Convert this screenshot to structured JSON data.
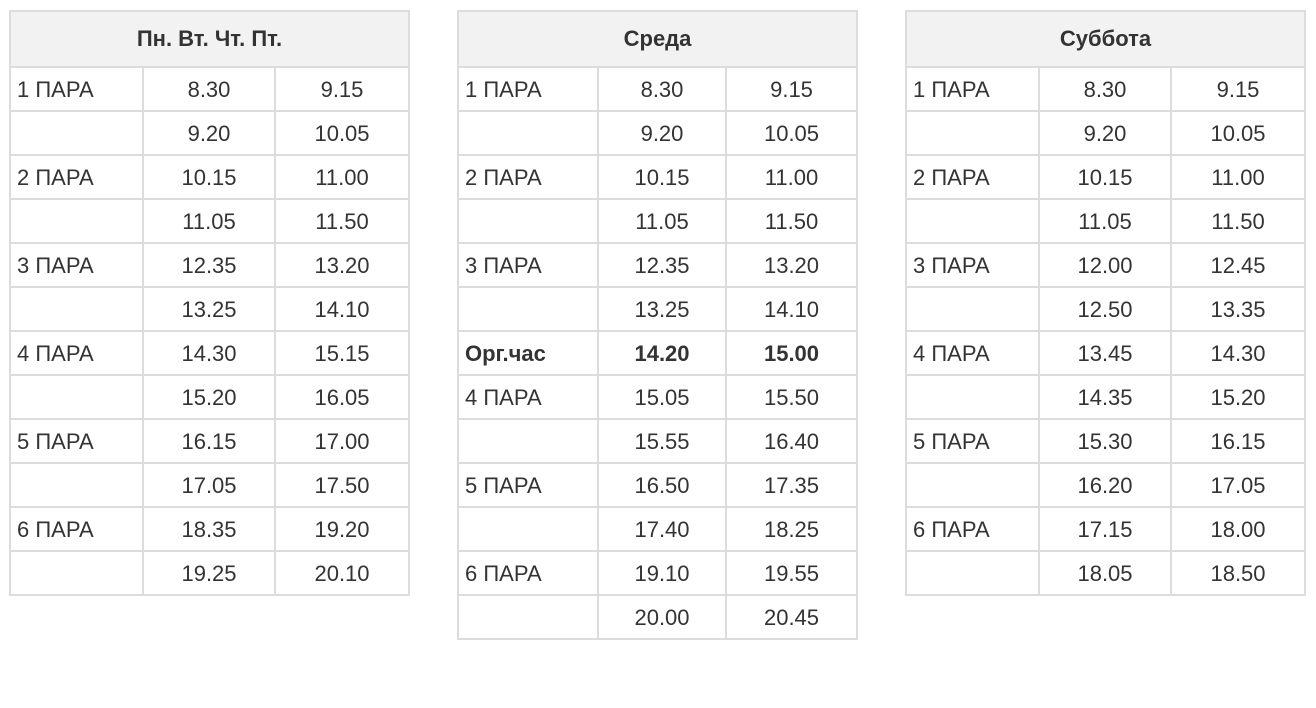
{
  "tables": [
    {
      "header": "Пн. Вт. Чт. Пт.",
      "rows": [
        {
          "label": "1 ПАРА",
          "start": "8.30",
          "end": "9.15",
          "bold": false
        },
        {
          "label": "",
          "start": "9.20",
          "end": "10.05",
          "bold": false
        },
        {
          "label": "2 ПАРА",
          "start": "10.15",
          "end": "11.00",
          "bold": false
        },
        {
          "label": "",
          "start": "11.05",
          "end": "11.50",
          "bold": false
        },
        {
          "label": "3 ПАРА",
          "start": "12.35",
          "end": "13.20",
          "bold": false
        },
        {
          "label": "",
          "start": "13.25",
          "end": "14.10",
          "bold": false
        },
        {
          "label": "4 ПАРА",
          "start": "14.30",
          "end": "15.15",
          "bold": false
        },
        {
          "label": "",
          "start": "15.20",
          "end": "16.05",
          "bold": false
        },
        {
          "label": "5 ПАРА",
          "start": "16.15",
          "end": "17.00",
          "bold": false
        },
        {
          "label": "",
          "start": "17.05",
          "end": "17.50",
          "bold": false
        },
        {
          "label": "6 ПАРА",
          "start": "18.35",
          "end": "19.20",
          "bold": false
        },
        {
          "label": "",
          "start": "19.25",
          "end": "20.10",
          "bold": false
        }
      ]
    },
    {
      "header": "Среда",
      "rows": [
        {
          "label": "1 ПАРА",
          "start": "8.30",
          "end": "9.15",
          "bold": false
        },
        {
          "label": "",
          "start": "9.20",
          "end": "10.05",
          "bold": false
        },
        {
          "label": "2 ПАРА",
          "start": "10.15",
          "end": "11.00",
          "bold": false
        },
        {
          "label": "",
          "start": "11.05",
          "end": "11.50",
          "bold": false
        },
        {
          "label": "3 ПАРА",
          "start": "12.35",
          "end": "13.20",
          "bold": false
        },
        {
          "label": "",
          "start": "13.25",
          "end": "14.10",
          "bold": false
        },
        {
          "label": "Орг.час",
          "start": "14.20",
          "end": "15.00",
          "bold": true
        },
        {
          "label": "4 ПАРА",
          "start": "15.05",
          "end": "15.50",
          "bold": false
        },
        {
          "label": "",
          "start": "15.55",
          "end": "16.40",
          "bold": false
        },
        {
          "label": "5 ПАРА",
          "start": "16.50",
          "end": "17.35",
          "bold": false
        },
        {
          "label": "",
          "start": "17.40",
          "end": "18.25",
          "bold": false
        },
        {
          "label": "6 ПАРА",
          "start": "19.10",
          "end": "19.55",
          "bold": false
        },
        {
          "label": "",
          "start": "20.00",
          "end": "20.45",
          "bold": false
        }
      ]
    },
    {
      "header": "Суббота",
      "rows": [
        {
          "label": "1 ПАРА",
          "start": "8.30",
          "end": "9.15",
          "bold": false
        },
        {
          "label": "",
          "start": "9.20",
          "end": "10.05",
          "bold": false
        },
        {
          "label": "2 ПАРА",
          "start": "10.15",
          "end": "11.00",
          "bold": false
        },
        {
          "label": "",
          "start": "11.05",
          "end": "11.50",
          "bold": false
        },
        {
          "label": "3 ПАРА",
          "start": "12.00",
          "end": "12.45",
          "bold": false
        },
        {
          "label": "",
          "start": "12.50",
          "end": "13.35",
          "bold": false
        },
        {
          "label": "4 ПАРА",
          "start": "13.45",
          "end": "14.30",
          "bold": false
        },
        {
          "label": "",
          "start": "14.35",
          "end": "15.20",
          "bold": false
        },
        {
          "label": "5 ПАРА",
          "start": "15.30",
          "end": "16.15",
          "bold": false
        },
        {
          "label": "",
          "start": "16.20",
          "end": "17.05",
          "bold": false
        },
        {
          "label": "6 ПАРА",
          "start": "17.15",
          "end": "18.00",
          "bold": false
        },
        {
          "label": "",
          "start": "18.05",
          "end": "18.50",
          "bold": false
        }
      ]
    }
  ]
}
